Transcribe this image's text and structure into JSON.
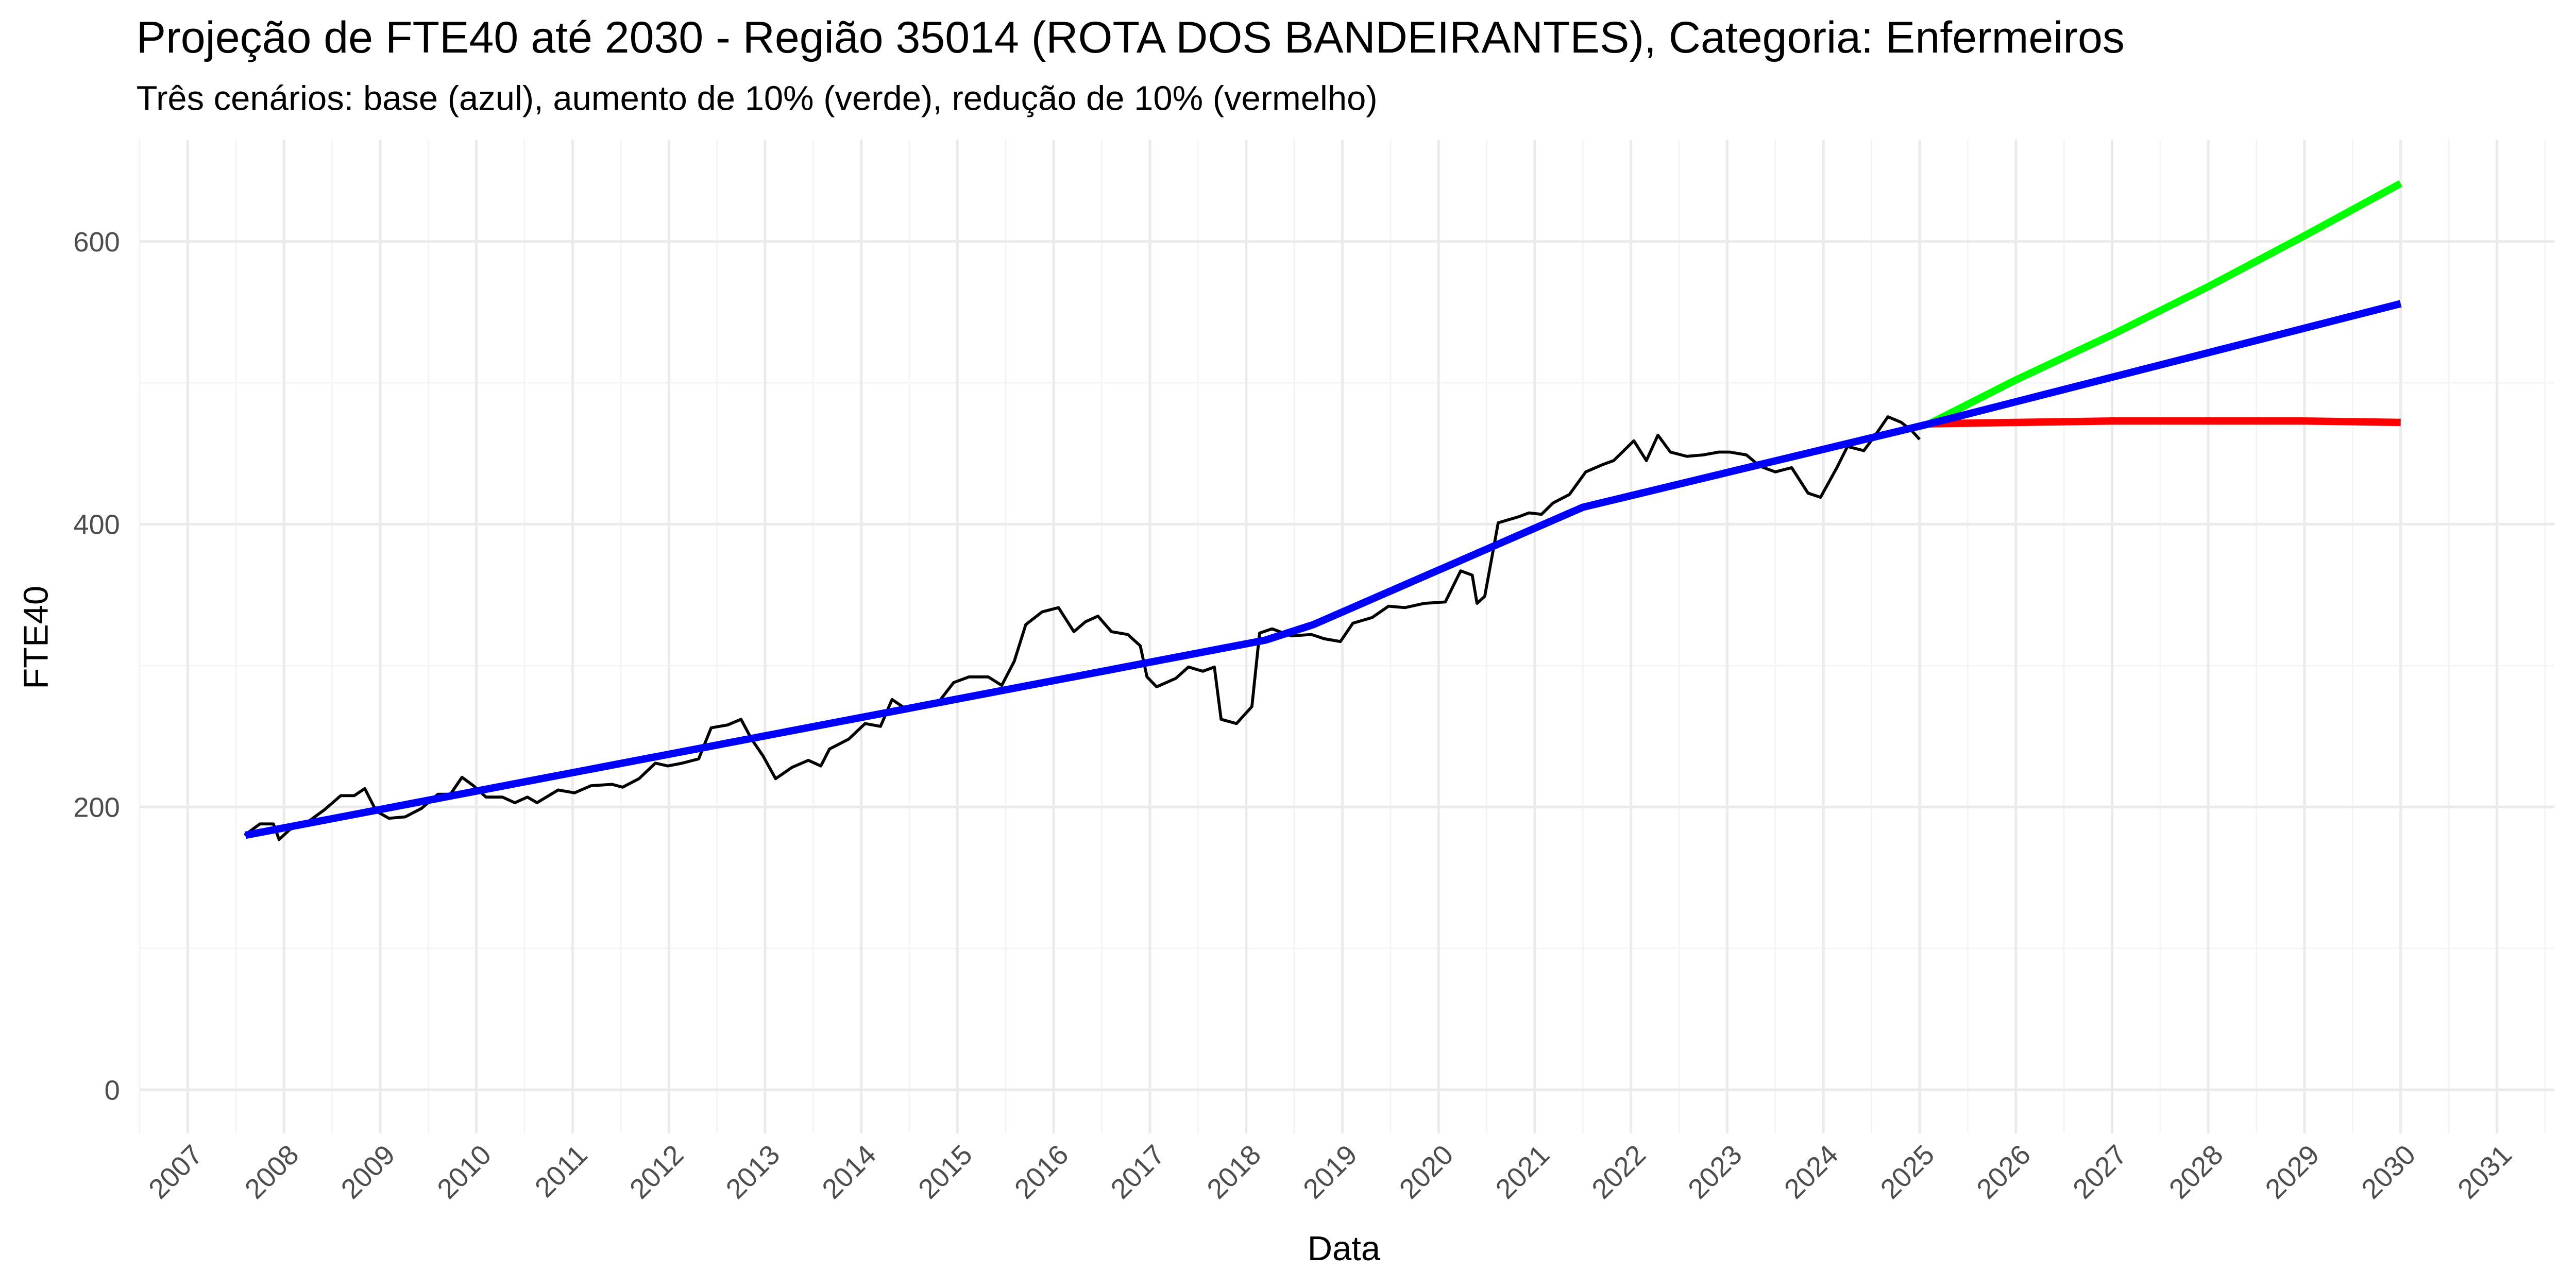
{
  "chart_data": {
    "type": "line",
    "title": "Projeção de FTE40 até 2030 - Região 35014 (ROTA DOS BANDEIRANTES), Categoria: Enfermeiros",
    "subtitle": "Três cenários: base (azul), aumento de 10% (verde), redução de 10% (vermelho)",
    "xlabel": "Data",
    "ylabel": "FTE40",
    "xlim": [
      2006.5,
      2031.6
    ],
    "ylim": [
      -31,
      672
    ],
    "xticks": [
      2007,
      2008,
      2009,
      2010,
      2011,
      2012,
      2013,
      2014,
      2015,
      2016,
      2017,
      2018,
      2019,
      2020,
      2021,
      2022,
      2023,
      2024,
      2025,
      2026,
      2027,
      2028,
      2029,
      2030,
      2031
    ],
    "xminor": [
      2006.5,
      2007.5,
      2008.5,
      2009.5,
      2010.5,
      2011.5,
      2012.5,
      2013.5,
      2014.5,
      2015.5,
      2016.5,
      2017.5,
      2018.5,
      2019.5,
      2020.5,
      2021.5,
      2022.5,
      2023.5,
      2024.5,
      2025.5,
      2026.5,
      2027.5,
      2028.5,
      2029.5,
      2030.5,
      2031.5
    ],
    "yticks": [
      0,
      200,
      400,
      600
    ],
    "yminor": [
      100,
      300,
      500
    ],
    "grid": true,
    "series": [
      {
        "color": "#000000",
        "x": [
          2007.59,
          2007.75,
          2007.89,
          2007.95,
          2008.06,
          2008.26,
          2008.42,
          2008.59,
          2008.73,
          2008.84,
          2008.96,
          2009.09,
          2009.26,
          2009.43,
          2009.6,
          2009.73,
          2009.85,
          2009.97,
          2010.1,
          2010.27,
          2010.4,
          2010.53,
          2010.63,
          2010.85,
          2011.02,
          2011.19,
          2011.41,
          2011.52,
          2011.69,
          2011.86,
          2011.99,
          2012.14,
          2012.31,
          2012.44,
          2012.61,
          2012.75,
          2012.86,
          2012.98,
          2013.11,
          2013.28,
          2013.45,
          2013.58,
          2013.67,
          2013.87,
          2014.04,
          2014.2,
          2014.32,
          2014.45,
          2014.62,
          2014.79,
          2014.96,
          2015.12,
          2015.32,
          2015.46,
          2015.59,
          2015.71,
          2015.88,
          2016.05,
          2016.21,
          2016.33,
          2016.46,
          2016.6,
          2016.77,
          2016.9,
          2016.97,
          2017.07,
          2017.27,
          2017.4,
          2017.55,
          2017.67,
          2017.74,
          2017.9,
          2018.06,
          2018.14,
          2018.27,
          2018.47,
          2018.68,
          2018.81,
          2018.98,
          2019.11,
          2019.31,
          2019.48,
          2019.65,
          2019.85,
          2020.07,
          2020.23,
          2020.35,
          2020.4,
          2020.48,
          2020.62,
          2020.82,
          2020.94,
          2021.07,
          2021.19,
          2021.36,
          2021.53,
          2021.7,
          2021.82,
          2022.03,
          2022.16,
          2022.28,
          2022.41,
          2022.58,
          2022.75,
          2022.91,
          2023.03,
          2023.2,
          2023.34,
          2023.5,
          2023.67,
          2023.84,
          2023.97,
          2024.14,
          2024.25,
          2024.42,
          2024.54,
          2024.67,
          2024.81,
          2024.92,
          2025.0
        ],
        "values": [
          180,
          188,
          188,
          177,
          184,
          190,
          198,
          208,
          208,
          213,
          197,
          192,
          193,
          199,
          209,
          209,
          221,
          215,
          207,
          207,
          203,
          207,
          203,
          212,
          210,
          215,
          216,
          214,
          220,
          231,
          229,
          231,
          234,
          256,
          258,
          262,
          248,
          236,
          220,
          228,
          233,
          229,
          241,
          248,
          259,
          257,
          276,
          270,
          271,
          273,
          288,
          292,
          292,
          286,
          303,
          329,
          338,
          341,
          324,
          331,
          335,
          324,
          322,
          314,
          292,
          285,
          291,
          299,
          296,
          299,
          262,
          259,
          271,
          323,
          326,
          321,
          322,
          319,
          317,
          330,
          334,
          342,
          341,
          344,
          345,
          367,
          364,
          344,
          349,
          401,
          405,
          408,
          407,
          415,
          421,
          437,
          442,
          445,
          459,
          445,
          463,
          451,
          448,
          449,
          451,
          451,
          449,
          441,
          437,
          440,
          422,
          419,
          440,
          455,
          452,
          463,
          476,
          472,
          466,
          460
        ]
      },
      {
        "color": "#00ff00",
        "x": [
          2025.1,
          2026.0,
          2027.0,
          2028.0,
          2029.0,
          2030.0
        ],
        "values": [
          471,
          502,
          534,
          568,
          604,
          641
        ]
      },
      {
        "color": "#ff0000",
        "x": [
          2025.1,
          2026.0,
          2027.0,
          2028.0,
          2029.0,
          2030.0
        ],
        "values": [
          471,
          472,
          473,
          473,
          473,
          472
        ]
      },
      {
        "color": "#0000ff",
        "x": [
          2007.6,
          2018.2,
          2018.7,
          2021.5,
          2025.1,
          2030.0
        ],
        "values": [
          180,
          318,
          329,
          412,
          471,
          556
        ]
      }
    ]
  }
}
